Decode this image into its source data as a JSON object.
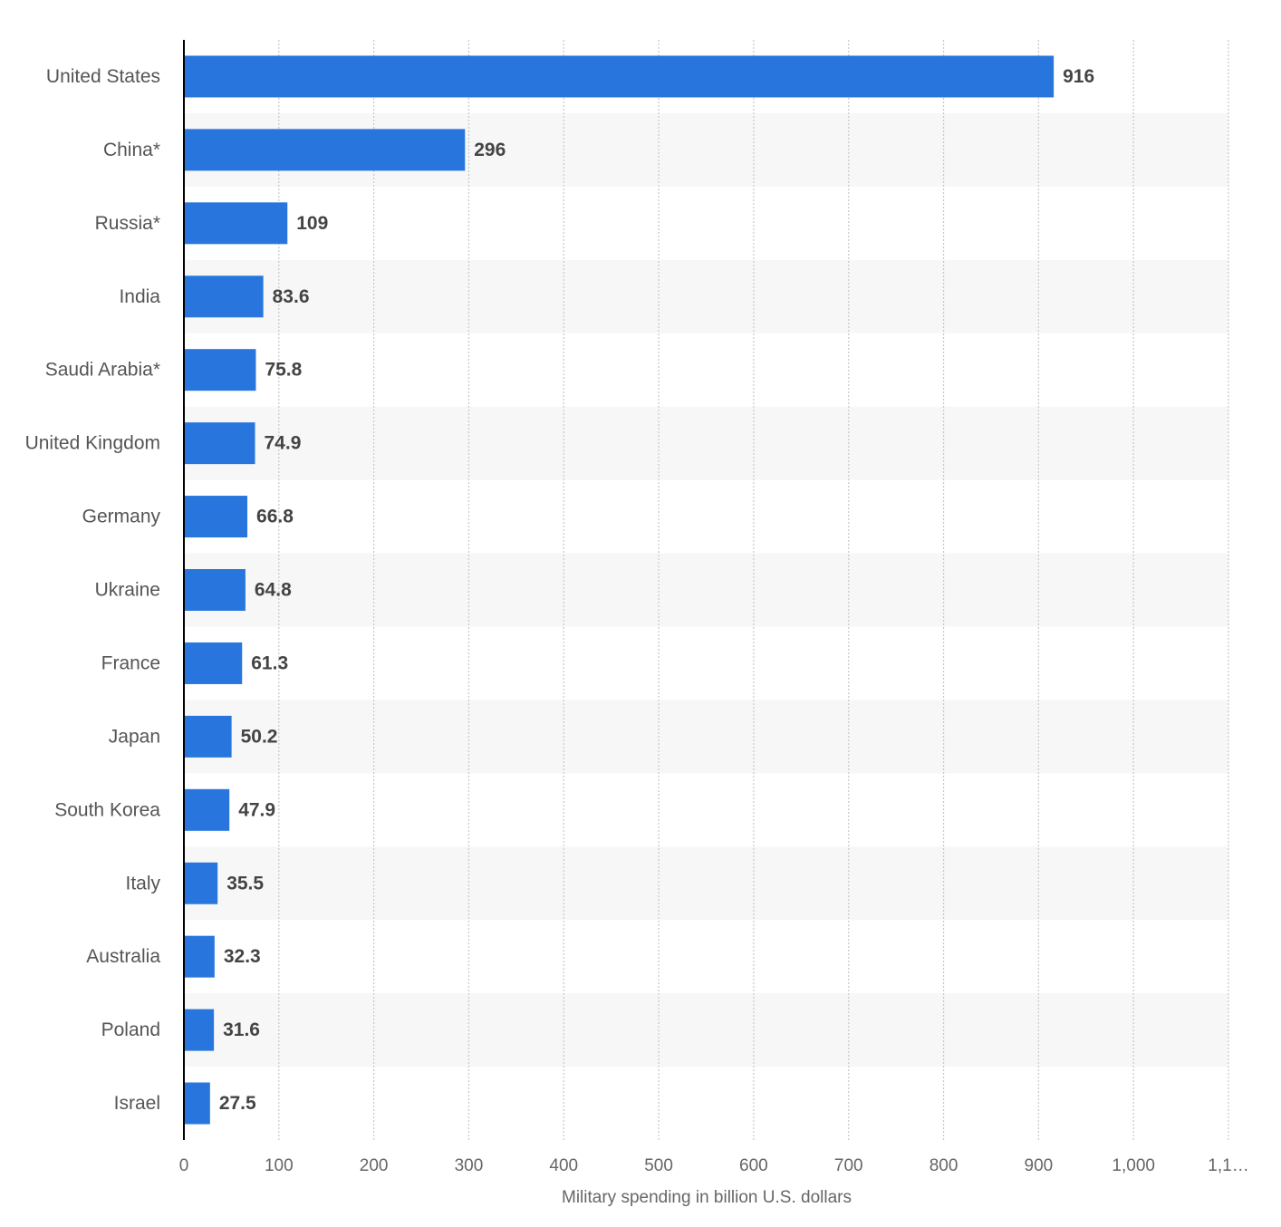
{
  "chart_data": {
    "type": "hbar",
    "categories": [
      "United States",
      "China*",
      "Russia*",
      "India",
      "Saudi Arabia*",
      "United Kingdom",
      "Germany",
      "Ukraine",
      "France",
      "Japan",
      "South Korea",
      "Italy",
      "Australia",
      "Poland",
      "Israel"
    ],
    "values": [
      916,
      296,
      109,
      83.6,
      75.8,
      74.9,
      66.8,
      64.8,
      61.3,
      50.2,
      47.9,
      35.5,
      32.3,
      31.6,
      27.5
    ],
    "color": "#2876dd",
    "xlabel": "Military spending in billion U.S. dollars",
    "xlim": [
      0,
      1100
    ],
    "xticks": [
      0,
      100,
      200,
      300,
      400,
      500,
      600,
      700,
      800,
      900,
      {
        "value": 1000,
        "label": "1,000"
      },
      {
        "value": 1100,
        "label": "1,1…"
      }
    ],
    "grid": true
  }
}
